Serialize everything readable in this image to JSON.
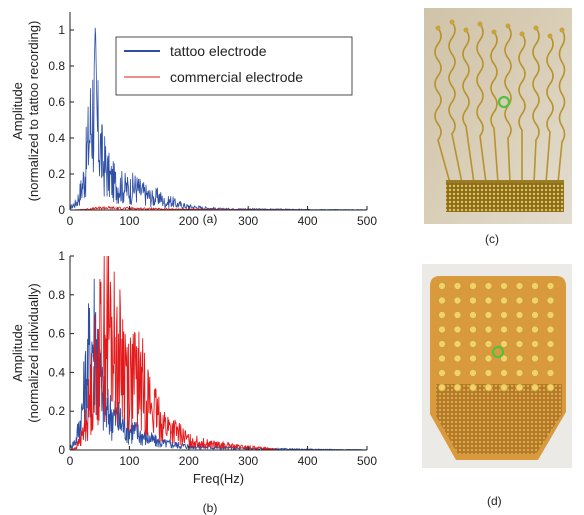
{
  "chart_data": [
    {
      "type": "line",
      "panel_label": "(a)",
      "xlabel": "",
      "ylabel": [
        "Amplitude",
        "(normalized to tattoo recording)"
      ],
      "xlim": [
        0,
        500
      ],
      "ylim": [
        0,
        1.1
      ],
      "x_ticks": [
        "0",
        "100",
        "200",
        "300",
        "400",
        "500"
      ],
      "y_ticks": [
        "0",
        "0.2",
        "0.4",
        "0.6",
        "0.8",
        "1"
      ],
      "legend_position": "top-right",
      "series": [
        {
          "name": "tattoo electrode",
          "color": "#2e4fa3",
          "x": [
            0,
            5,
            10,
            15,
            20,
            25,
            30,
            35,
            40,
            43,
            46,
            50,
            55,
            60,
            65,
            70,
            80,
            90,
            100,
            110,
            120,
            130,
            140,
            150,
            160,
            170,
            180,
            200,
            220,
            250,
            300,
            350,
            400,
            450,
            500
          ],
          "y": [
            0.02,
            0.04,
            0.06,
            0.12,
            0.2,
            0.32,
            0.55,
            0.78,
            0.95,
            1.0,
            0.7,
            0.6,
            0.42,
            0.38,
            0.3,
            0.26,
            0.22,
            0.2,
            0.18,
            0.2,
            0.16,
            0.13,
            0.1,
            0.12,
            0.06,
            0.08,
            0.05,
            0.03,
            0.02,
            0.01,
            0.008,
            0.006,
            0.004,
            0.003,
            0.002
          ]
        },
        {
          "name": "commercial electrode",
          "color": "#e31a1c",
          "x": [
            0,
            20,
            40,
            60,
            80,
            100,
            120,
            140,
            160,
            200,
            250,
            300,
            350,
            400,
            500
          ],
          "y": [
            0.0,
            0.004,
            0.012,
            0.02,
            0.016,
            0.014,
            0.012,
            0.01,
            0.008,
            0.006,
            0.004,
            0.003,
            0.002,
            0.001,
            0.0
          ]
        }
      ]
    },
    {
      "type": "line",
      "panel_label": "(b)",
      "xlabel": "Freq(Hz)",
      "ylabel": [
        "Amplitude",
        "(normalized individually)"
      ],
      "xlim": [
        0,
        500
      ],
      "ylim": [
        0,
        1.0
      ],
      "x_ticks": [
        "0",
        "100",
        "200",
        "300",
        "400",
        "500"
      ],
      "y_ticks": [
        "0",
        "0.2",
        "0.4",
        "0.6",
        "0.8",
        "1"
      ],
      "series": [
        {
          "name": "",
          "color": "#2e4fa3",
          "x": [
            0,
            10,
            20,
            30,
            38,
            43,
            50,
            60,
            70,
            80,
            90,
            100,
            120,
            150,
            200,
            250,
            300,
            400,
            500
          ],
          "y": [
            0.02,
            0.08,
            0.3,
            0.7,
            0.9,
            1.0,
            0.6,
            0.3,
            0.3,
            0.25,
            0.2,
            0.18,
            0.12,
            0.06,
            0.03,
            0.02,
            0.01,
            0.005,
            0.002
          ]
        },
        {
          "name": "",
          "color": "#e31a1c",
          "x": [
            0,
            10,
            20,
            30,
            40,
            50,
            60,
            65,
            70,
            80,
            90,
            100,
            110,
            120,
            130,
            140,
            150,
            160,
            180,
            200,
            220,
            250,
            300,
            340,
            350
          ],
          "y": [
            0.0,
            0.02,
            0.1,
            0.3,
            0.62,
            0.82,
            0.98,
            1.0,
            0.9,
            0.78,
            0.72,
            0.6,
            0.58,
            0.55,
            0.45,
            0.32,
            0.26,
            0.2,
            0.14,
            0.08,
            0.06,
            0.04,
            0.02,
            0.01,
            0.0
          ]
        }
      ]
    }
  ],
  "photos": {
    "c": {
      "label": "(c)"
    },
    "d": {
      "label": "(d)"
    }
  }
}
